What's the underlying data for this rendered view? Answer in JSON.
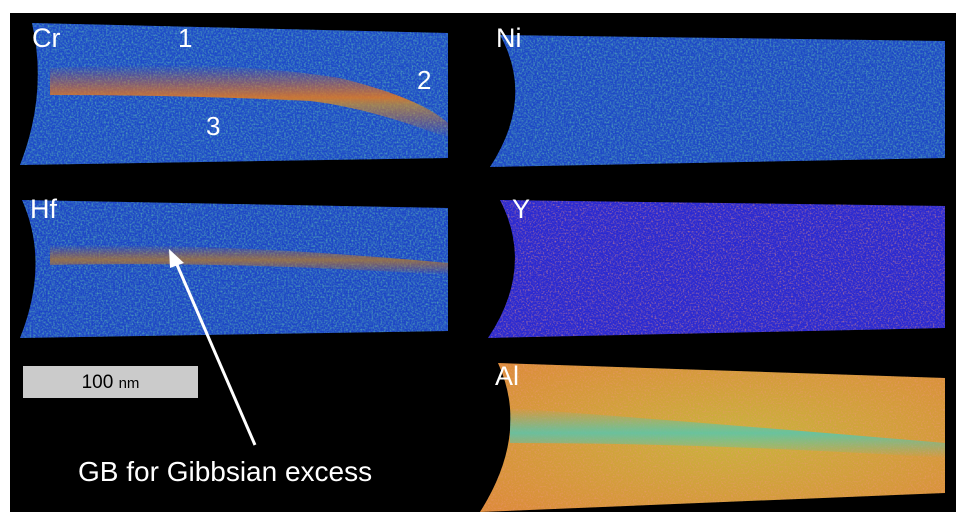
{
  "elements": {
    "cr": "Cr",
    "ni": "Ni",
    "hf": "Hf",
    "y": "Y",
    "al": "Al"
  },
  "markers": {
    "m1": "1",
    "m2": "2",
    "m3": "3"
  },
  "scale_bar": {
    "value": "100",
    "unit": "nm"
  },
  "annotation": {
    "text": "GB for Gibbsian excess"
  },
  "colors": {
    "background": "#000000",
    "low_concentration": "#1e3cc8",
    "mid_concentration": "#3cc896",
    "high_concentration": "#e65a1e",
    "scale_bar_fill": "#cbcbcb",
    "text": "#ffffff"
  }
}
